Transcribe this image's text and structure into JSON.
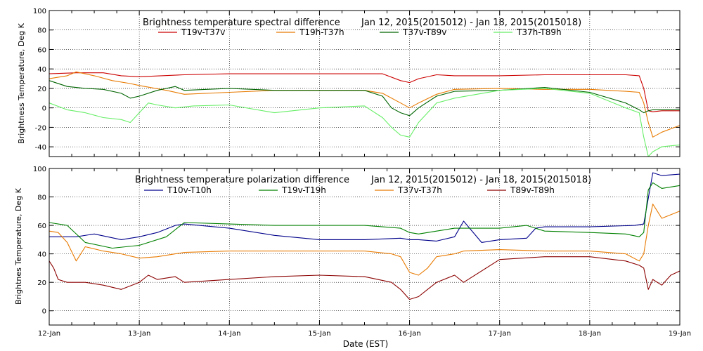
{
  "chart_data": [
    {
      "type": "line",
      "title": "Brightness temperature spectral difference",
      "date_range": "Jan 12, 2015(2015012) - Jan 18, 2015(2015018)",
      "ylabel": "Brightness Temperature, Deg K",
      "xlabel": "",
      "xlim": [
        0,
        7
      ],
      "ylim": [
        -50,
        100
      ],
      "yticks": [
        -40,
        -20,
        0,
        20,
        40,
        60,
        80,
        100
      ],
      "xtick_labels": [],
      "grid": true,
      "legend_position": "top",
      "series": [
        {
          "name": "T19v-T37v",
          "color": "#cc0000",
          "x": [
            0,
            0.3,
            0.6,
            0.8,
            1.0,
            1.5,
            2.0,
            2.5,
            3.0,
            3.5,
            3.7,
            3.9,
            4.0,
            4.1,
            4.3,
            4.5,
            5.0,
            5.5,
            6.0,
            6.4,
            6.55,
            6.6,
            6.65,
            6.7,
            6.8,
            7.0
          ],
          "y": [
            35,
            36,
            36,
            33,
            32,
            34,
            35,
            35,
            35,
            35,
            35,
            28,
            26,
            30,
            34,
            33,
            33,
            34,
            34,
            34,
            33,
            20,
            -3,
            -4,
            -3,
            -3
          ]
        },
        {
          "name": "T19h-T37h",
          "color": "#e87a00",
          "x": [
            0,
            0.2,
            0.3,
            0.5,
            0.7,
            0.9,
            1.0,
            1.3,
            1.5,
            2.0,
            2.5,
            3.0,
            3.5,
            3.7,
            3.9,
            4.0,
            4.1,
            4.3,
            4.5,
            5.0,
            5.5,
            6.0,
            6.4,
            6.55,
            6.6,
            6.65,
            6.7,
            6.8,
            7.0
          ],
          "y": [
            30,
            33,
            37,
            33,
            28,
            25,
            23,
            18,
            14,
            16,
            18,
            18,
            18,
            15,
            5,
            0,
            5,
            14,
            19,
            20,
            19,
            19,
            17,
            16,
            5,
            -15,
            -30,
            -25,
            -18
          ]
        },
        {
          "name": "T37v-T89v",
          "color": "#006400",
          "x": [
            0,
            0.2,
            0.4,
            0.6,
            0.8,
            0.9,
            1.0,
            1.2,
            1.4,
            1.5,
            2.0,
            2.5,
            3.0,
            3.5,
            3.7,
            3.8,
            3.9,
            4.0,
            4.1,
            4.3,
            4.5,
            5.0,
            5.5,
            6.0,
            6.4,
            6.55,
            6.6,
            6.65,
            6.7,
            6.8,
            7.0
          ],
          "y": [
            28,
            22,
            20,
            19,
            15,
            10,
            12,
            18,
            22,
            18,
            20,
            18,
            18,
            18,
            12,
            0,
            -5,
            -8,
            0,
            12,
            17,
            18,
            21,
            16,
            5,
            -2,
            -5,
            -3,
            -2,
            -2,
            -2
          ]
        },
        {
          "name": "T37h-T89h",
          "color": "#66ee66",
          "x": [
            0,
            0.2,
            0.4,
            0.6,
            0.8,
            0.9,
            1.0,
            1.1,
            1.2,
            1.4,
            1.6,
            2.0,
            2.5,
            3.0,
            3.5,
            3.7,
            3.8,
            3.9,
            4.0,
            4.1,
            4.3,
            4.5,
            5.0,
            5.5,
            6.0,
            6.4,
            6.55,
            6.6,
            6.65,
            6.7,
            6.8,
            7.0
          ],
          "y": [
            5,
            -2,
            -5,
            -10,
            -12,
            -15,
            -5,
            5,
            3,
            0,
            2,
            3,
            -5,
            0,
            2,
            -10,
            -20,
            -28,
            -30,
            -15,
            5,
            10,
            18,
            20,
            15,
            0,
            -5,
            -30,
            -50,
            -45,
            -40,
            -38
          ]
        }
      ]
    },
    {
      "type": "line",
      "title": "Brightness temperature polarization difference",
      "date_range": "Jan 12, 2015(2015012) - Jan 18, 2015(2015018)",
      "ylabel": "Brightnes Temperature, Deg K",
      "xlabel": "Date (EST)",
      "xlim": [
        0,
        7
      ],
      "ylim": [
        -10,
        100
      ],
      "yticks": [
        0,
        20,
        40,
        60,
        80,
        100
      ],
      "xtick_labels": [
        "12-Jan",
        "13-Jan",
        "14-Jan",
        "15-Jan",
        "16-Jan",
        "17-Jan",
        "18-Jan",
        "19-Jan"
      ],
      "grid": true,
      "legend_position": "top",
      "series": [
        {
          "name": "T10v-T10h",
          "color": "#00008b",
          "x": [
            0,
            0.3,
            0.5,
            0.8,
            1.0,
            1.2,
            1.4,
            1.5,
            2.0,
            2.5,
            3.0,
            3.5,
            3.9,
            4.0,
            4.1,
            4.3,
            4.5,
            4.6,
            4.8,
            5.0,
            5.3,
            5.4,
            5.5,
            6.0,
            6.5,
            6.6,
            6.7,
            6.8,
            7.0
          ],
          "y": [
            52,
            52,
            54,
            50,
            52,
            55,
            60,
            61,
            58,
            53,
            50,
            50,
            51,
            50,
            50,
            49,
            52,
            63,
            48,
            50,
            51,
            58,
            59,
            59,
            60,
            61,
            97,
            95,
            96
          ]
        },
        {
          "name": "T19v-T19h",
          "color": "#008000",
          "x": [
            0,
            0.2,
            0.4,
            0.7,
            1.0,
            1.3,
            1.5,
            2.0,
            2.5,
            3.0,
            3.5,
            3.9,
            4.0,
            4.1,
            4.3,
            4.5,
            5.0,
            5.3,
            5.5,
            6.0,
            6.4,
            6.55,
            6.6,
            6.65,
            6.7,
            6.8,
            7.0
          ],
          "y": [
            62,
            60,
            48,
            44,
            46,
            52,
            62,
            61,
            60,
            60,
            60,
            58,
            55,
            54,
            56,
            58,
            58,
            60,
            56,
            55,
            54,
            52,
            55,
            85,
            90,
            86,
            88
          ]
        },
        {
          "name": "T37v-T37h",
          "color": "#e87a00",
          "x": [
            0,
            0.1,
            0.2,
            0.3,
            0.4,
            0.6,
            0.8,
            1.0,
            1.2,
            1.4,
            1.5,
            2.0,
            2.5,
            3.0,
            3.5,
            3.8,
            3.9,
            4.0,
            4.1,
            4.2,
            4.3,
            4.5,
            4.6,
            5.0,
            5.5,
            6.0,
            6.4,
            6.55,
            6.6,
            6.65,
            6.7,
            6.8,
            7.0
          ],
          "y": [
            56,
            55,
            48,
            35,
            45,
            42,
            40,
            37,
            38,
            40,
            41,
            42,
            42,
            42,
            42,
            40,
            38,
            27,
            25,
            30,
            38,
            40,
            42,
            43,
            42,
            42,
            40,
            35,
            40,
            60,
            75,
            65,
            70
          ]
        },
        {
          "name": "T89v-T89h",
          "color": "#8b0000",
          "x": [
            0,
            0.05,
            0.1,
            0.2,
            0.4,
            0.6,
            0.8,
            1.0,
            1.1,
            1.2,
            1.4,
            1.5,
            2.0,
            2.5,
            3.0,
            3.5,
            3.8,
            3.9,
            4.0,
            4.1,
            4.2,
            4.3,
            4.5,
            4.6,
            5.0,
            5.5,
            6.0,
            6.4,
            6.55,
            6.6,
            6.65,
            6.7,
            6.8,
            6.9,
            7.0
          ],
          "y": [
            35,
            30,
            22,
            20,
            20,
            18,
            15,
            20,
            25,
            22,
            24,
            20,
            22,
            24,
            25,
            24,
            20,
            15,
            8,
            10,
            15,
            20,
            25,
            20,
            36,
            38,
            38,
            35,
            32,
            30,
            15,
            22,
            18,
            25,
            28
          ]
        }
      ]
    }
  ]
}
